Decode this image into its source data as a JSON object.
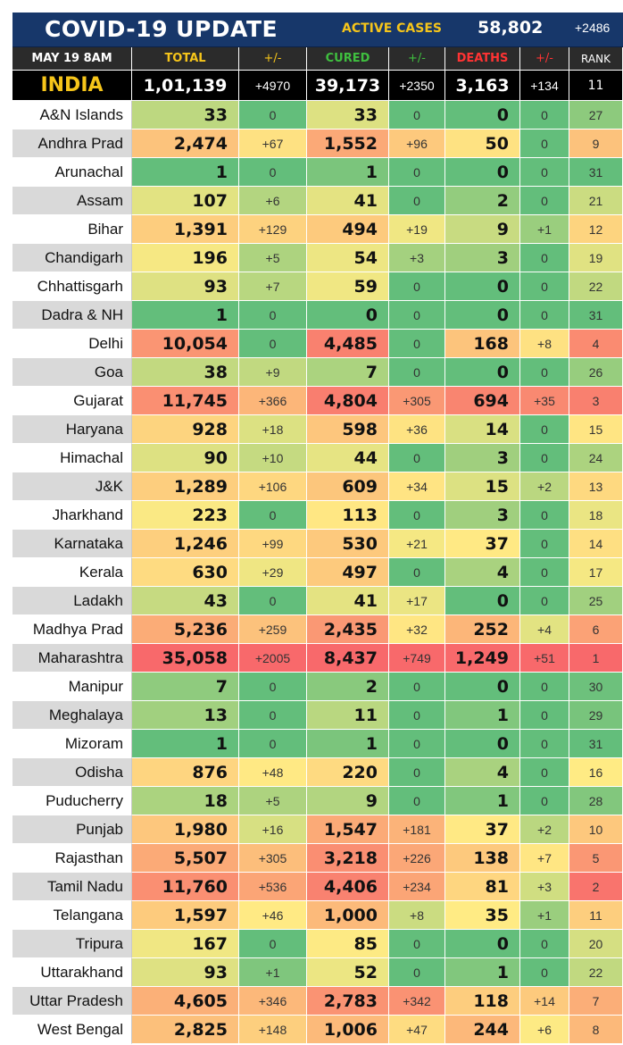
{
  "header": {
    "title": "COVID-19 UPDATE",
    "active_label": "ACTIVE CASES",
    "active_value": "58,802",
    "active_delta": "+2486"
  },
  "columns": {
    "date": "MAY 19  8AM",
    "total": "TOTAL",
    "total_delta": "+/-",
    "cured": "CURED",
    "cured_delta": "+/-",
    "deaths": "DEATHS",
    "deaths_delta": "+/-",
    "rank": "RANK"
  },
  "india": {
    "name": "INDIA",
    "total": "1,01,139",
    "total_delta": "+4970",
    "cured": "39,173",
    "cured_delta": "+2350",
    "deaths": "3,163",
    "deaths_delta": "+134",
    "rank": "11"
  },
  "rows": [
    {
      "state": "A&N Islands",
      "total": "33",
      "total_delta": "0",
      "cured": "33",
      "cured_delta": "0",
      "deaths": "0",
      "deaths_delta": "0",
      "rank": "27"
    },
    {
      "state": "Andhra Prad",
      "total": "2,474",
      "total_delta": "+67",
      "cured": "1,552",
      "cured_delta": "+96",
      "deaths": "50",
      "deaths_delta": "0",
      "rank": "9"
    },
    {
      "state": "Arunachal",
      "total": "1",
      "total_delta": "0",
      "cured": "1",
      "cured_delta": "0",
      "deaths": "0",
      "deaths_delta": "0",
      "rank": "31"
    },
    {
      "state": "Assam",
      "total": "107",
      "total_delta": "+6",
      "cured": "41",
      "cured_delta": "0",
      "deaths": "2",
      "deaths_delta": "0",
      "rank": "21"
    },
    {
      "state": "Bihar",
      "total": "1,391",
      "total_delta": "+129",
      "cured": "494",
      "cured_delta": "+19",
      "deaths": "9",
      "deaths_delta": "+1",
      "rank": "12"
    },
    {
      "state": "Chandigarh",
      "total": "196",
      "total_delta": "+5",
      "cured": "54",
      "cured_delta": "+3",
      "deaths": "3",
      "deaths_delta": "0",
      "rank": "19"
    },
    {
      "state": "Chhattisgarh",
      "total": "93",
      "total_delta": "+7",
      "cured": "59",
      "cured_delta": "0",
      "deaths": "0",
      "deaths_delta": "0",
      "rank": "22"
    },
    {
      "state": "Dadra & NH",
      "total": "1",
      "total_delta": "0",
      "cured": "0",
      "cured_delta": "0",
      "deaths": "0",
      "deaths_delta": "0",
      "rank": "31"
    },
    {
      "state": "Delhi",
      "total": "10,054",
      "total_delta": "0",
      "cured": "4,485",
      "cured_delta": "0",
      "deaths": "168",
      "deaths_delta": "+8",
      "rank": "4"
    },
    {
      "state": "Goa",
      "total": "38",
      "total_delta": "+9",
      "cured": "7",
      "cured_delta": "0",
      "deaths": "0",
      "deaths_delta": "0",
      "rank": "26"
    },
    {
      "state": "Gujarat",
      "total": "11,745",
      "total_delta": "+366",
      "cured": "4,804",
      "cured_delta": "+305",
      "deaths": "694",
      "deaths_delta": "+35",
      "rank": "3"
    },
    {
      "state": "Haryana",
      "total": "928",
      "total_delta": "+18",
      "cured": "598",
      "cured_delta": "+36",
      "deaths": "14",
      "deaths_delta": "0",
      "rank": "15"
    },
    {
      "state": "Himachal",
      "total": "90",
      "total_delta": "+10",
      "cured": "44",
      "cured_delta": "0",
      "deaths": "3",
      "deaths_delta": "0",
      "rank": "24"
    },
    {
      "state": "J&K",
      "total": "1,289",
      "total_delta": "+106",
      "cured": "609",
      "cured_delta": "+34",
      "deaths": "15",
      "deaths_delta": "+2",
      "rank": "13"
    },
    {
      "state": "Jharkhand",
      "total": "223",
      "total_delta": "0",
      "cured": "113",
      "cured_delta": "0",
      "deaths": "3",
      "deaths_delta": "0",
      "rank": "18"
    },
    {
      "state": "Karnataka",
      "total": "1,246",
      "total_delta": "+99",
      "cured": "530",
      "cured_delta": "+21",
      "deaths": "37",
      "deaths_delta": "0",
      "rank": "14"
    },
    {
      "state": "Kerala",
      "total": "630",
      "total_delta": "+29",
      "cured": "497",
      "cured_delta": "0",
      "deaths": "4",
      "deaths_delta": "0",
      "rank": "17"
    },
    {
      "state": "Ladakh",
      "total": "43",
      "total_delta": "0",
      "cured": "41",
      "cured_delta": "+17",
      "deaths": "0",
      "deaths_delta": "0",
      "rank": "25"
    },
    {
      "state": "Madhya Prad",
      "total": "5,236",
      "total_delta": "+259",
      "cured": "2,435",
      "cured_delta": "+32",
      "deaths": "252",
      "deaths_delta": "+4",
      "rank": "6"
    },
    {
      "state": "Maharashtra",
      "total": "35,058",
      "total_delta": "+2005",
      "cured": "8,437",
      "cured_delta": "+749",
      "deaths": "1,249",
      "deaths_delta": "+51",
      "rank": "1"
    },
    {
      "state": "Manipur",
      "total": "7",
      "total_delta": "0",
      "cured": "2",
      "cured_delta": "0",
      "deaths": "0",
      "deaths_delta": "0",
      "rank": "30"
    },
    {
      "state": "Meghalaya",
      "total": "13",
      "total_delta": "0",
      "cured": "11",
      "cured_delta": "0",
      "deaths": "1",
      "deaths_delta": "0",
      "rank": "29"
    },
    {
      "state": "Mizoram",
      "total": "1",
      "total_delta": "0",
      "cured": "1",
      "cured_delta": "0",
      "deaths": "0",
      "deaths_delta": "0",
      "rank": "31"
    },
    {
      "state": "Odisha",
      "total": "876",
      "total_delta": "+48",
      "cured": "220",
      "cured_delta": "0",
      "deaths": "4",
      "deaths_delta": "0",
      "rank": "16"
    },
    {
      "state": "Puducherry",
      "total": "18",
      "total_delta": "+5",
      "cured": "9",
      "cured_delta": "0",
      "deaths": "1",
      "deaths_delta": "0",
      "rank": "28"
    },
    {
      "state": "Punjab",
      "total": "1,980",
      "total_delta": "+16",
      "cured": "1,547",
      "cured_delta": "+181",
      "deaths": "37",
      "deaths_delta": "+2",
      "rank": "10"
    },
    {
      "state": "Rajasthan",
      "total": "5,507",
      "total_delta": "+305",
      "cured": "3,218",
      "cured_delta": "+226",
      "deaths": "138",
      "deaths_delta": "+7",
      "rank": "5"
    },
    {
      "state": "Tamil Nadu",
      "total": "11,760",
      "total_delta": "+536",
      "cured": "4,406",
      "cured_delta": "+234",
      "deaths": "81",
      "deaths_delta": "+3",
      "rank": "2"
    },
    {
      "state": "Telangana",
      "total": "1,597",
      "total_delta": "+46",
      "cured": "1,000",
      "cured_delta": "+8",
      "deaths": "35",
      "deaths_delta": "+1",
      "rank": "11"
    },
    {
      "state": "Tripura",
      "total": "167",
      "total_delta": "0",
      "cured": "85",
      "cured_delta": "0",
      "deaths": "0",
      "deaths_delta": "0",
      "rank": "20"
    },
    {
      "state": "Uttarakhand",
      "total": "93",
      "total_delta": "+1",
      "cured": "52",
      "cured_delta": "0",
      "deaths": "1",
      "deaths_delta": "0",
      "rank": "22"
    },
    {
      "state": "Uttar Pradesh",
      "total": "4,605",
      "total_delta": "+346",
      "cured": "2,783",
      "cured_delta": "+342",
      "deaths": "118",
      "deaths_delta": "+14",
      "rank": "7"
    },
    {
      "state": "West Bengal",
      "total": "2,825",
      "total_delta": "+148",
      "cured": "1,006",
      "cured_delta": "+47",
      "deaths": "244",
      "deaths_delta": "+6",
      "rank": "8"
    }
  ]
}
